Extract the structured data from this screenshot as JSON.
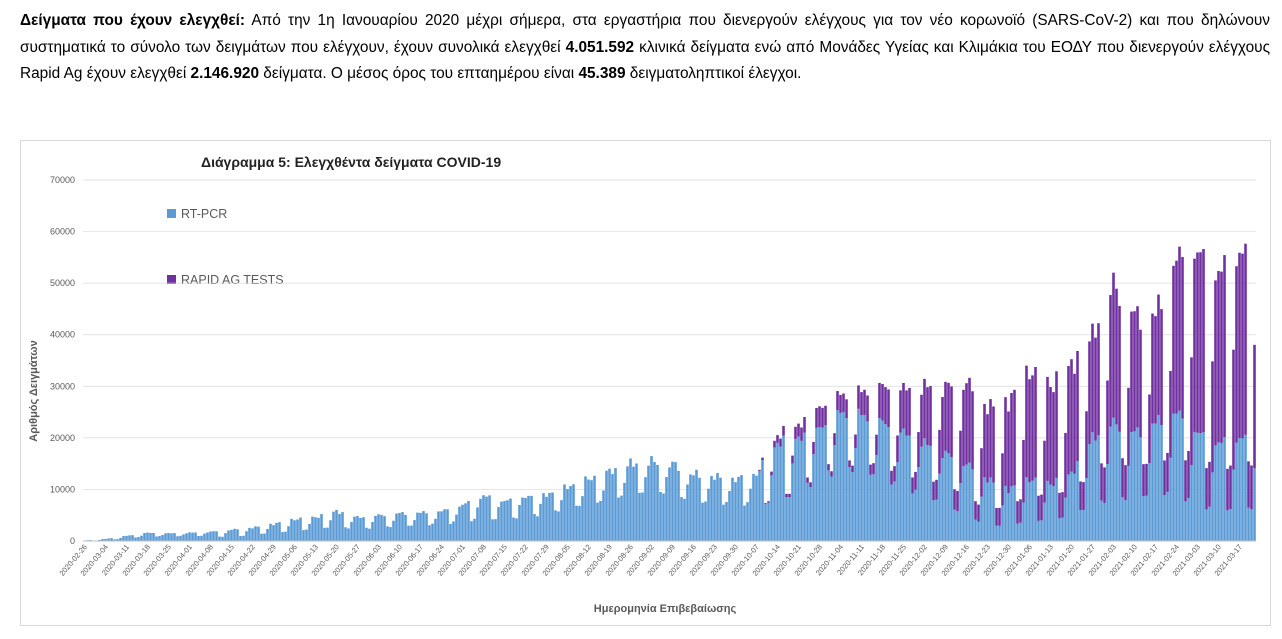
{
  "paragraph": {
    "heading": "Δείγματα που έχουν ελεγχθεί",
    "colon": ":",
    "text1": " Από την 1η Ιανουαρίου 2020 μέχρι σήμερα, στα εργαστήρια που διενεργούν ελέγχους για τον νέο κορωνοϊό (SARS-CoV-2) και που δηλώνουν συστηματικά το σύνολο των δειγμάτων που ελέγχουν, έχουν συνολικά ελεγχθεί ",
    "total_clinical": "4.051.592",
    "text2": " κλινικά δείγματα ενώ από Μονάδες Υγείας και Κλιμάκια του ΕΟΔΥ που διενεργούν ελέγχους Rapid Ag έχουν ελεγχθεί ",
    "total_rapid": "2.146.920",
    "text3": " δείγματα. Ο μέσος όρος του επταημέρου είναι ",
    "weekly_avg": "45.389",
    "text4": " δειγματοληπτικοί έλεγχοι."
  },
  "colors": {
    "rtpcr": "#5b9bd5",
    "rapid": "#7030a0",
    "axis": "#808080",
    "grid": "#d9d9d9"
  },
  "chart_data": {
    "type": "bar",
    "stacked": true,
    "title": "Διάγραμμα 5: Ελεγχθέντα δείγματα COVID-19",
    "xlabel": "Ημερομηνία Επιβεβαίωσης",
    "ylabel": "Αριθμός Δειγμάτων",
    "ylim": [
      0,
      70000
    ],
    "yticks": [
      0,
      10000,
      20000,
      30000,
      40000,
      50000,
      60000,
      70000
    ],
    "grid": true,
    "legend_position": "top-left",
    "x_start": "2020-02-26",
    "x_end": "2021-03-22",
    "x_ticks": [
      "2020-02-26",
      "2020-03-04",
      "2020-03-11",
      "2020-03-18",
      "2020-03-25",
      "2020-04-01",
      "2020-04-08",
      "2020-04-15",
      "2020-04-22",
      "2020-04-29",
      "2020-05-06",
      "2020-05-13",
      "2020-05-20",
      "2020-05-27",
      "2020-06-03",
      "2020-06-10",
      "2020-06-17",
      "2020-06-24",
      "2020-07-01",
      "2020-07-08",
      "2020-07-15",
      "2020-07-22",
      "2020-07-29",
      "2020-08-05",
      "2020-08-12",
      "2020-08-19",
      "2020-08-26",
      "2020-09-02",
      "2020-09-09",
      "2020-09-16",
      "2020-09-23",
      "2020-09-30",
      "2020-10-07",
      "2020-10-14",
      "2020-10-21",
      "2020-10-28",
      "2020-11-04",
      "2020-11-11",
      "2020-11-18",
      "2020-11-25",
      "2020-12-02",
      "2020-12-09",
      "2020-12-16",
      "2020-12-23",
      "2020-12-30",
      "2021-01-06",
      "2021-01-13",
      "2021-01-20",
      "2021-01-27",
      "2021-02-03",
      "2021-02-10",
      "2021-02-17",
      "2021-02-24",
      "2021-03-03",
      "2021-03-10",
      "2021-03-17"
    ],
    "series": [
      {
        "name": "RT-PCR",
        "color": "#5b9bd5",
        "weekly_profile": [
          {
            "date": "2020-02-26",
            "weekday": 100,
            "weekend": 50
          },
          {
            "date": "2020-03-04",
            "weekday": 400,
            "weekend": 150
          },
          {
            "date": "2020-03-11",
            "weekday": 1000,
            "weekend": 500
          },
          {
            "date": "2020-03-18",
            "weekday": 1600,
            "weekend": 900
          },
          {
            "date": "2020-03-25",
            "weekday": 1500,
            "weekend": 900
          },
          {
            "date": "2020-04-01",
            "weekday": 1600,
            "weekend": 1000
          },
          {
            "date": "2020-04-08",
            "weekday": 1800,
            "weekend": 1000
          },
          {
            "date": "2020-04-15",
            "weekday": 2200,
            "weekend": 700
          },
          {
            "date": "2020-04-22",
            "weekday": 2600,
            "weekend": 1300
          },
          {
            "date": "2020-04-29",
            "weekday": 3300,
            "weekend": 1600
          },
          {
            "date": "2020-05-06",
            "weekday": 4200,
            "weekend": 2000
          },
          {
            "date": "2020-05-13",
            "weekday": 4600,
            "weekend": 2400
          },
          {
            "date": "2020-05-20",
            "weekday": 5800,
            "weekend": 2800
          },
          {
            "date": "2020-05-27",
            "weekday": 4600,
            "weekend": 2300
          },
          {
            "date": "2020-06-03",
            "weekday": 5000,
            "weekend": 2600
          },
          {
            "date": "2020-06-10",
            "weekday": 5400,
            "weekend": 2800
          },
          {
            "date": "2020-06-17",
            "weekday": 5500,
            "weekend": 3000
          },
          {
            "date": "2020-06-24",
            "weekday": 5800,
            "weekend": 3300
          },
          {
            "date": "2020-07-01",
            "weekday": 7000,
            "weekend": 3800
          },
          {
            "date": "2020-07-08",
            "weekday": 8800,
            "weekend": 4500
          },
          {
            "date": "2020-07-15",
            "weekday": 7800,
            "weekend": 4200
          },
          {
            "date": "2020-07-22",
            "weekday": 8600,
            "weekend": 5000
          },
          {
            "date": "2020-07-29",
            "weekday": 9000,
            "weekend": 5200
          },
          {
            "date": "2020-08-05",
            "weekday": 10500,
            "weekend": 6500
          },
          {
            "date": "2020-08-12",
            "weekday": 12000,
            "weekend": 7000
          },
          {
            "date": "2020-08-19",
            "weekday": 13500,
            "weekend": 8000
          },
          {
            "date": "2020-08-26",
            "weekday": 15000,
            "weekend": 9000
          },
          {
            "date": "2020-09-02",
            "weekday": 15500,
            "weekend": 9500
          },
          {
            "date": "2020-09-09",
            "weekday": 15000,
            "weekend": 9000
          },
          {
            "date": "2020-09-16",
            "weekday": 13000,
            "weekend": 7500
          },
          {
            "date": "2020-09-23",
            "weekday": 12500,
            "weekend": 7500
          },
          {
            "date": "2020-09-30",
            "weekday": 12000,
            "weekend": 7200
          },
          {
            "date": "2020-10-07",
            "weekday": 13000,
            "weekend": 7500
          },
          {
            "date": "2020-10-14",
            "weekday": 19000,
            "weekend": 7500
          },
          {
            "date": "2020-10-21",
            "weekday": 20000,
            "weekend": 10000
          },
          {
            "date": "2020-10-28",
            "weekday": 22000,
            "weekend": 12000
          },
          {
            "date": "2020-11-04",
            "weekday": 25000,
            "weekend": 14000
          },
          {
            "date": "2020-11-11",
            "weekday": 24500,
            "weekend": 13000
          },
          {
            "date": "2020-11-18",
            "weekday": 23000,
            "weekend": 12000
          },
          {
            "date": "2020-11-25",
            "weekday": 21000,
            "weekend": 10000
          },
          {
            "date": "2020-12-02",
            "weekday": 19000,
            "weekend": 9000
          },
          {
            "date": "2020-12-09",
            "weekday": 17000,
            "weekend": 7000
          },
          {
            "date": "2020-12-16",
            "weekday": 15000,
            "weekend": 5000
          },
          {
            "date": "2020-12-23",
            "weekday": 12000,
            "weekend": 3000
          },
          {
            "date": "2020-12-30",
            "weekday": 10000,
            "weekend": 3000
          },
          {
            "date": "2021-01-06",
            "weekday": 12000,
            "weekend": 4000
          },
          {
            "date": "2021-01-13",
            "weekday": 11000,
            "weekend": 4000
          },
          {
            "date": "2021-01-20",
            "weekday": 13000,
            "weekend": 5000
          },
          {
            "date": "2021-01-27",
            "weekday": 20000,
            "weekend": 7000
          },
          {
            "date": "2021-02-03",
            "weekday": 23000,
            "weekend": 8000
          },
          {
            "date": "2021-02-10",
            "weekday": 21000,
            "weekend": 8000
          },
          {
            "date": "2021-02-17",
            "weekday": 23000,
            "weekend": 9000
          },
          {
            "date": "2021-02-24",
            "weekday": 25000,
            "weekend": 9000
          },
          {
            "date": "2021-03-03",
            "weekday": 21000,
            "weekend": 7000
          },
          {
            "date": "2021-03-10",
            "weekday": 19000,
            "weekend": 6000
          },
          {
            "date": "2021-03-17",
            "weekday": 20000,
            "weekend": 6500
          }
        ]
      },
      {
        "name": "RAPID AG TESTS",
        "color": "#7030a0",
        "weekly_profile": [
          {
            "date": "2020-10-07",
            "weekday": 0,
            "weekend": 0
          },
          {
            "date": "2020-10-14",
            "weekday": 1500,
            "weekend": 500
          },
          {
            "date": "2020-10-21",
            "weekday": 2500,
            "weekend": 800
          },
          {
            "date": "2020-10-28",
            "weekday": 4000,
            "weekend": 1200
          },
          {
            "date": "2020-11-04",
            "weekday": 3500,
            "weekend": 1000
          },
          {
            "date": "2020-11-11",
            "weekday": 4500,
            "weekend": 1500
          },
          {
            "date": "2020-11-18",
            "weekday": 7000,
            "weekend": 2500
          },
          {
            "date": "2020-11-25",
            "weekday": 8500,
            "weekend": 3000
          },
          {
            "date": "2020-12-02",
            "weekday": 11000,
            "weekend": 3500
          },
          {
            "date": "2020-12-09",
            "weekday": 13000,
            "weekend": 4000
          },
          {
            "date": "2020-12-16",
            "weekday": 16000,
            "weekend": 4000
          },
          {
            "date": "2020-12-23",
            "weekday": 14000,
            "weekend": 3000
          },
          {
            "date": "2020-12-30",
            "weekday": 17000,
            "weekend": 4000
          },
          {
            "date": "2021-01-06",
            "weekday": 21000,
            "weekend": 5000
          },
          {
            "date": "2021-01-13",
            "weekday": 19000,
            "weekend": 5000
          },
          {
            "date": "2021-01-20",
            "weekday": 21000,
            "weekend": 5000
          },
          {
            "date": "2021-01-27",
            "weekday": 20000,
            "weekend": 6000
          },
          {
            "date": "2021-02-03",
            "weekday": 27000,
            "weekend": 8000
          },
          {
            "date": "2021-02-10",
            "weekday": 23000,
            "weekend": 6000
          },
          {
            "date": "2021-02-17",
            "weekday": 21000,
            "weekend": 6000
          },
          {
            "date": "2021-02-24",
            "weekday": 30000,
            "weekend": 8000
          },
          {
            "date": "2021-03-03",
            "weekday": 35000,
            "weekend": 9000
          },
          {
            "date": "2021-03-10",
            "weekday": 33000,
            "weekend": 8000
          },
          {
            "date": "2021-03-17",
            "weekday": 36000,
            "weekend": 9000
          }
        ]
      }
    ]
  }
}
